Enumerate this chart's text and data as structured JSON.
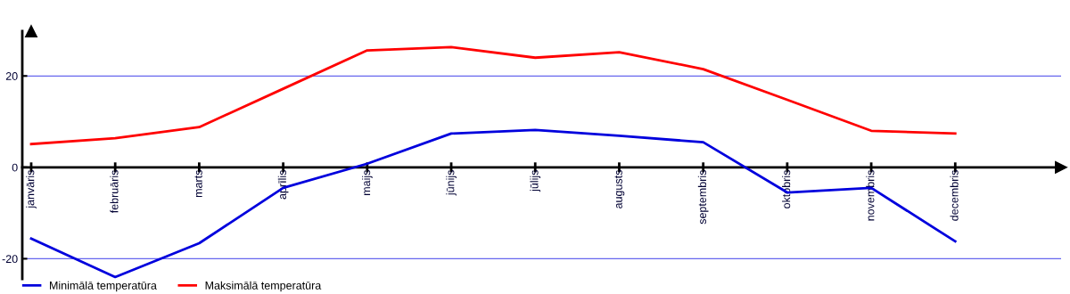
{
  "chart_data": {
    "type": "line",
    "categories": [
      "janvāris",
      "februāris",
      "marts",
      "aprīlis",
      "maijs",
      "jūnijs",
      "jūlijs",
      "augusts",
      "septembris",
      "oktobris",
      "novembris",
      "decembris"
    ],
    "series": [
      {
        "name": "Minimālā temperatūra",
        "color": "#0000dd",
        "values": [
          -15.6,
          -24.0,
          -16.6,
          -4.5,
          0.8,
          7.4,
          8.2,
          6.9,
          5.5,
          -5.5,
          -4.5,
          -16.2
        ]
      },
      {
        "name": "Maksimālā temperatūra",
        "color": "#ff0000",
        "values": [
          5.1,
          6.4,
          8.8,
          17.2,
          25.6,
          26.3,
          24.0,
          25.2,
          21.5,
          14.8,
          8.0,
          7.4
        ]
      }
    ],
    "ylim": [
      -24.4,
      29.8
    ],
    "yticks": [
      -20,
      0,
      20
    ],
    "grid": "y",
    "legend": "bottom left",
    "marker": "none",
    "line_style": "solid"
  }
}
